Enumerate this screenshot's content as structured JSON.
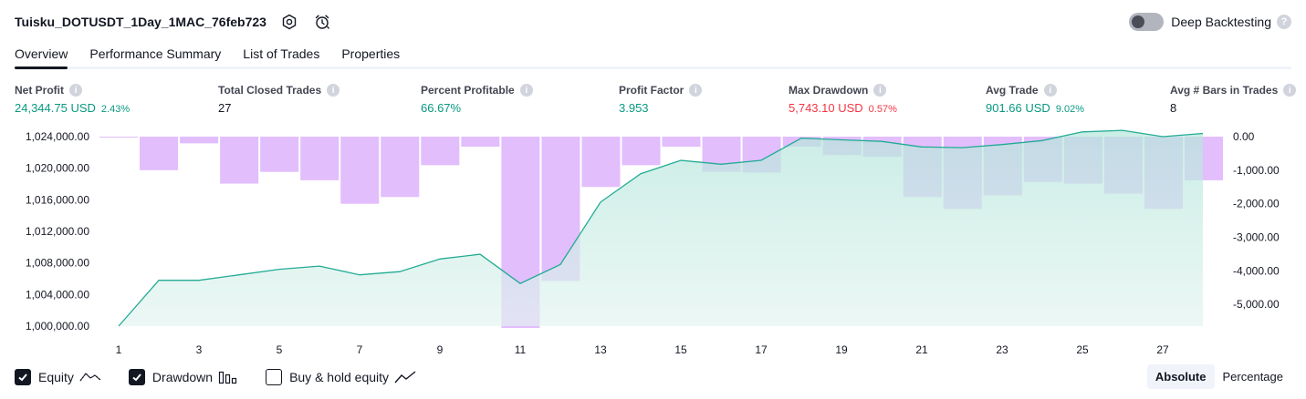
{
  "header": {
    "strategy_name": "Tuisku_DOTUSDT_1Day_1MAC_76feb723",
    "deep_backtesting_label": "Deep Backtesting",
    "deep_backtesting_on": false
  },
  "tabs": [
    {
      "label": "Overview",
      "active": true
    },
    {
      "label": "Performance Summary",
      "active": false
    },
    {
      "label": "List of Trades",
      "active": false
    },
    {
      "label": "Properties",
      "active": false
    }
  ],
  "stats": {
    "net_profit": {
      "label": "Net Profit",
      "value": "24,344.75 USD",
      "sub": "2.43%"
    },
    "total_closed_trades": {
      "label": "Total Closed Trades",
      "value": "27"
    },
    "percent_profitable": {
      "label": "Percent Profitable",
      "value": "66.67%"
    },
    "profit_factor": {
      "label": "Profit Factor",
      "value": "3.953"
    },
    "max_drawdown": {
      "label": "Max Drawdown",
      "value": "5,743.10 USD",
      "sub": "0.57%"
    },
    "avg_trade": {
      "label": "Avg Trade",
      "value": "901.66 USD",
      "sub": "9.02%"
    },
    "avg_bars": {
      "label": "Avg # Bars in Trades",
      "value": "8"
    }
  },
  "chart_data": {
    "type": "area",
    "x_ticks": [
      "1",
      "3",
      "5",
      "7",
      "9",
      "11",
      "13",
      "15",
      "17",
      "19",
      "21",
      "23",
      "25",
      "27"
    ],
    "left_axis": {
      "ticks": [
        "1,024,000.00",
        "1,020,000.00",
        "1,016,000.00",
        "1,012,000.00",
        "1,008,000.00",
        "1,004,000.00",
        "1,000,000.00"
      ],
      "ylim": [
        1000000,
        1024000
      ]
    },
    "right_axis": {
      "ticks": [
        "0.00",
        "-1,000.00",
        "-2,000.00",
        "-3,000.00",
        "-4,000.00",
        "-5,000.00"
      ],
      "ylim": [
        -5700,
        0
      ]
    },
    "x": [
      1,
      2,
      3,
      4,
      5,
      6,
      7,
      8,
      9,
      10,
      11,
      12,
      13,
      14,
      15,
      16,
      17,
      18,
      19,
      20,
      21,
      22,
      23,
      24,
      25,
      26,
      27,
      28
    ],
    "series": [
      {
        "name": "Equity",
        "color": "#22ab94",
        "values": [
          1000000,
          1005800,
          1005800,
          1006500,
          1007200,
          1007600,
          1006500,
          1006900,
          1008500,
          1009100,
          1005400,
          1007800,
          1015700,
          1019300,
          1021000,
          1020500,
          1021000,
          1023800,
          1023600,
          1023400,
          1022700,
          1022600,
          1023000,
          1023500,
          1024600,
          1024800,
          1024000,
          1024400
        ]
      },
      {
        "name": "Drawdown",
        "color": "#ce93fc",
        "values": [
          -25,
          -1000,
          -200,
          -1400,
          -1050,
          -1300,
          -2000,
          -1800,
          -850,
          -300,
          -5700,
          -4300,
          -1500,
          -850,
          -300,
          -1050,
          -1070,
          -300,
          -550,
          -600,
          -1800,
          -2150,
          -1750,
          -1350,
          -1400,
          -1700,
          -2150,
          -1300
        ]
      }
    ]
  },
  "legend": [
    {
      "label": "Equity",
      "checked": true,
      "icon": "equity-line-icon"
    },
    {
      "label": "Drawdown",
      "checked": true,
      "icon": "drawdown-bars-icon"
    },
    {
      "label": "Buy & hold equity",
      "checked": false,
      "icon": "buy-hold-line-icon"
    }
  ],
  "modes": [
    {
      "label": "Absolute",
      "active": true
    },
    {
      "label": "Percentage",
      "active": false
    }
  ]
}
